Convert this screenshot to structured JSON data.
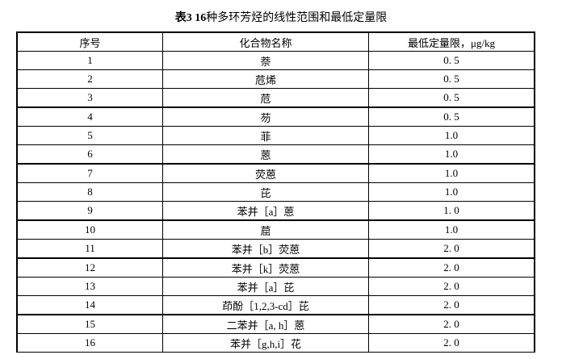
{
  "title": {
    "prefix": "表3 16",
    "text": "种多环芳烃的线性范围和最低定量限"
  },
  "table": {
    "headers": [
      "序号",
      "化合物名称",
      "最低定量限，μg/kg"
    ],
    "rows": [
      [
        "1",
        "萘",
        "0. 5"
      ],
      [
        "2",
        "苊烯",
        "0. 5"
      ],
      [
        "3",
        "苊",
        "0. 5"
      ],
      [
        "4",
        "芴",
        "0. 5"
      ],
      [
        "5",
        "菲",
        "1.0"
      ],
      [
        "6",
        "蒽",
        "1.0"
      ],
      [
        "7",
        "荧蒽",
        "1.0"
      ],
      [
        "8",
        "芘",
        "1.0"
      ],
      [
        "9",
        "苯并［a］蒽",
        "1. 0"
      ],
      [
        "10",
        "䓛",
        "1.0"
      ],
      [
        "11",
        "苯并［b］荧蒽",
        "2. 0"
      ],
      [
        "12",
        "苯并［k］荧蒽",
        "2. 0"
      ],
      [
        "13",
        "苯并［a］芘",
        "2. 0"
      ],
      [
        "14",
        "茚酚［1,2,3-cd］芘",
        "2. 0"
      ],
      [
        "15",
        "二苯并［a, h］蒽",
        "2. 0"
      ],
      [
        "16",
        "苯并［g,h,i］花",
        "2. 0"
      ]
    ]
  }
}
